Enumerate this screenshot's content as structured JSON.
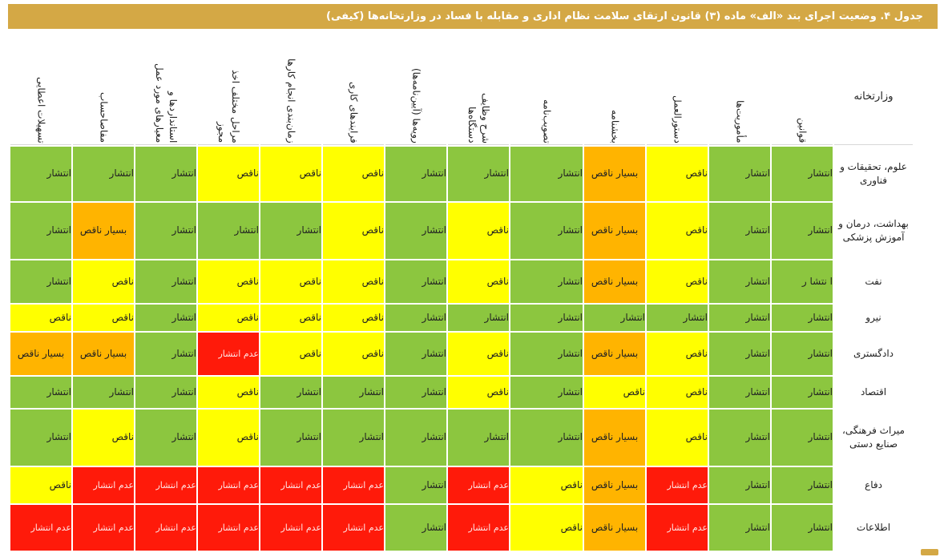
{
  "title": "جدول ۴. وضعیت اجرای بند «الف» ماده (۳) قانون ارتقای سلامت نظام اداری و مقابله با فساد در وزارتخانه‌ها (کیفی)",
  "corner_label": "وزارتخانه",
  "columns": [
    "قوانین",
    "مأموریت‌ها",
    "دستورالعمل",
    "بخشنامه",
    "تصویب‌نامه",
    "شرح وظایف دستگاه‌ها",
    "رویه‌ها (آیین‌نامه‌ها)",
    "فرایندهای کاری",
    "زمان‌بندی انجام کارها",
    "مراحل مختلف اخذ مجوز",
    "استانداردها و معیارهای مورد عمل",
    "مفاصاحساب",
    "تسهیلات اعطایی"
  ],
  "status_labels": {
    "full": "انتشار",
    "partial": "ناقص",
    "very": "بسیار ناقص",
    "none": "عدم انتشار"
  },
  "colors": {
    "full": "#8cc63f",
    "partial": "#ffff00",
    "very": "#ffb400",
    "none": "#ff1a0a",
    "title_bar": "#d4a845"
  },
  "rows": [
    {
      "name": "علوم، تحقیقات و فناوری",
      "height": 68,
      "cells": [
        "full",
        "full",
        "partial",
        "very",
        "full",
        "full",
        "full",
        "partial",
        "partial",
        "partial",
        "full",
        "full",
        "full"
      ]
    },
    {
      "name": "بهداشت، درمان و آموزش پزشکی",
      "height": 70,
      "cells": [
        "full",
        "full",
        "partial",
        "very",
        "full",
        "partial",
        "full",
        "partial",
        "full",
        "full",
        "full",
        "very",
        "full"
      ]
    },
    {
      "name": "نفت",
      "height": 53,
      "cells": [
        "full*",
        "full",
        "partial",
        "very",
        "full",
        "partial",
        "full",
        "partial",
        "partial",
        "partial",
        "full",
        "partial",
        "full"
      ]
    },
    {
      "name": "نیرو",
      "height": 33,
      "cells": [
        "full",
        "full",
        "full",
        "full",
        "full",
        "full",
        "full",
        "partial",
        "partial",
        "partial",
        "full",
        "partial",
        "partial"
      ]
    },
    {
      "name": "دادگستری",
      "height": 53,
      "cells": [
        "full",
        "full",
        "partial",
        "very",
        "full",
        "partial",
        "full",
        "partial",
        "partial",
        "none",
        "full",
        "very",
        "very"
      ]
    },
    {
      "name": "اقتصاد",
      "height": 39,
      "cells": [
        "full",
        "full",
        "partial",
        "partial",
        "full",
        "partial",
        "full",
        "full",
        "full",
        "partial",
        "full",
        "full",
        "full"
      ]
    },
    {
      "name": "میراث فرهنگی، صنایع دستی",
      "height": 70,
      "cells": [
        "full",
        "full",
        "partial",
        "very",
        "full",
        "full",
        "full",
        "full",
        "full",
        "partial",
        "full",
        "partial",
        "full"
      ]
    },
    {
      "name": "دفاع",
      "height": 45,
      "cells": [
        "full",
        "full",
        "none",
        "very",
        "partial",
        "none",
        "full",
        "none",
        "none",
        "none",
        "none",
        "none",
        "partial"
      ]
    },
    {
      "name": "اطلاعات",
      "height": 57,
      "cells": [
        "full",
        "full",
        "none",
        "very",
        "partial",
        "none",
        "full",
        "none",
        "none",
        "none",
        "none",
        "none",
        "none"
      ]
    }
  ],
  "special_text": {
    "full*": "ا نتشا ر"
  }
}
